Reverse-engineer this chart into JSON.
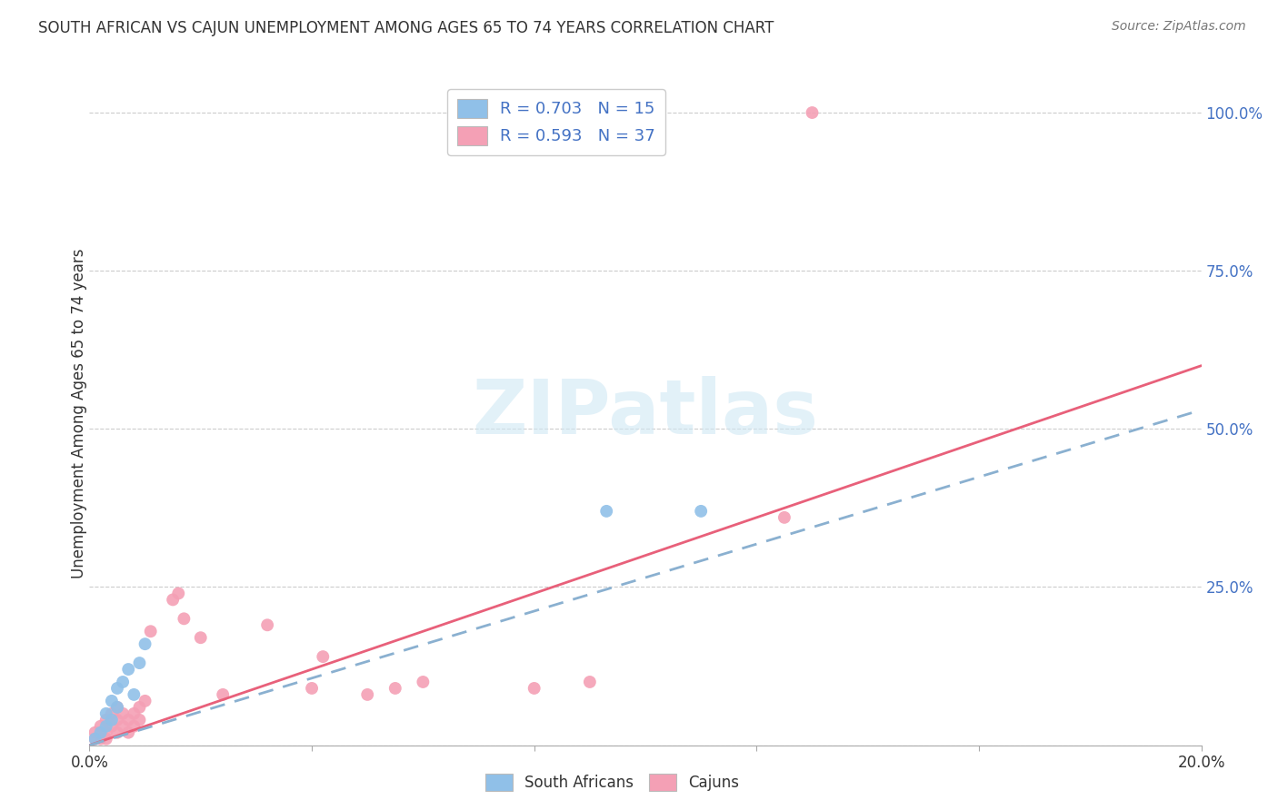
{
  "title": "SOUTH AFRICAN VS CAJUN UNEMPLOYMENT AMONG AGES 65 TO 74 YEARS CORRELATION CHART",
  "source": "Source: ZipAtlas.com",
  "ylabel": "Unemployment Among Ages 65 to 74 years",
  "xlim": [
    0.0,
    0.2
  ],
  "ylim": [
    0.0,
    1.05
  ],
  "blue_color": "#90C0E8",
  "pink_color": "#F4A0B5",
  "blue_line_color": "#8AB0D0",
  "pink_line_color": "#E8607A",
  "legend_text_color": "#4472C4",
  "legend1_text": "R = 0.703   N = 15",
  "legend2_text": "R = 0.593   N = 37",
  "watermark_zip": "ZIP",
  "watermark_atlas": "atlas",
  "south_african_x": [
    0.001,
    0.002,
    0.003,
    0.003,
    0.004,
    0.004,
    0.005,
    0.005,
    0.006,
    0.007,
    0.008,
    0.009,
    0.01,
    0.093,
    0.11
  ],
  "south_african_y": [
    0.01,
    0.02,
    0.03,
    0.05,
    0.04,
    0.07,
    0.06,
    0.09,
    0.1,
    0.12,
    0.08,
    0.13,
    0.16,
    0.37,
    0.37
  ],
  "cajun_x": [
    0.001,
    0.001,
    0.002,
    0.002,
    0.003,
    0.003,
    0.003,
    0.004,
    0.004,
    0.005,
    0.005,
    0.005,
    0.006,
    0.006,
    0.007,
    0.007,
    0.008,
    0.008,
    0.009,
    0.009,
    0.01,
    0.011,
    0.015,
    0.016,
    0.017,
    0.02,
    0.024,
    0.032,
    0.04,
    0.042,
    0.05,
    0.055,
    0.06,
    0.08,
    0.09,
    0.125,
    0.13
  ],
  "cajun_y": [
    0.01,
    0.02,
    0.01,
    0.03,
    0.02,
    0.04,
    0.01,
    0.03,
    0.05,
    0.02,
    0.04,
    0.06,
    0.03,
    0.05,
    0.02,
    0.04,
    0.05,
    0.03,
    0.04,
    0.06,
    0.07,
    0.18,
    0.23,
    0.24,
    0.2,
    0.17,
    0.08,
    0.19,
    0.09,
    0.14,
    0.08,
    0.09,
    0.1,
    0.09,
    0.1,
    0.36,
    1.0
  ],
  "sa_line_x": [
    0.0,
    0.2
  ],
  "sa_line_y": [
    0.0,
    0.53
  ],
  "cj_line_x": [
    0.0,
    0.2
  ],
  "cj_line_y": [
    0.0,
    0.6
  ]
}
